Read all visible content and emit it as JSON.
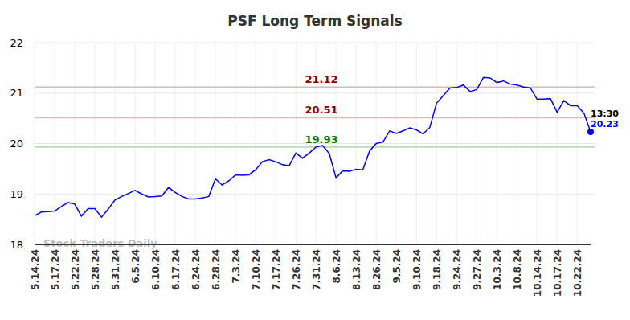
{
  "chart_data": {
    "type": "line",
    "title": "PSF Long Term Signals",
    "categories": [
      "5.14.24",
      null,
      null,
      "5.17.24",
      null,
      null,
      "5.22.24",
      null,
      null,
      "5.28.24",
      null,
      null,
      "5.31.24",
      null,
      null,
      "6.5.24",
      null,
      null,
      "6.10.24",
      null,
      null,
      "6.17.24",
      null,
      null,
      "6.24.24",
      null,
      null,
      "6.28.24",
      null,
      null,
      "7.3.24",
      null,
      null,
      "7.10.24",
      null,
      null,
      "7.17.24",
      null,
      null,
      "7.26.24",
      null,
      null,
      "7.31.24",
      null,
      null,
      "8.6.24",
      null,
      null,
      "8.13.24",
      null,
      null,
      "8.26.24",
      null,
      null,
      "9.5.24",
      null,
      null,
      "9.10.24",
      null,
      null,
      "9.18.24",
      null,
      null,
      "9.24.24",
      null,
      null,
      "9.27.24",
      null,
      null,
      "10.3.24",
      null,
      null,
      "10.8.24",
      null,
      null,
      "10.14.24",
      null,
      null,
      "10.17.24",
      null,
      null,
      "10.22.24",
      null,
      null
    ],
    "values": [
      18.57,
      18.64,
      18.65,
      18.66,
      18.75,
      18.83,
      18.8,
      18.56,
      18.71,
      18.71,
      18.54,
      18.7,
      18.88,
      18.95,
      19.01,
      19.07,
      19.0,
      18.94,
      18.95,
      18.96,
      19.13,
      19.03,
      18.95,
      18.9,
      18.9,
      18.92,
      18.95,
      19.3,
      19.18,
      19.26,
      19.38,
      19.37,
      19.38,
      19.48,
      19.64,
      19.68,
      19.64,
      19.58,
      19.56,
      19.81,
      19.71,
      19.81,
      19.93,
      19.96,
      19.8,
      19.32,
      19.46,
      19.45,
      19.49,
      19.48,
      19.85,
      20.0,
      20.03,
      20.25,
      20.2,
      20.25,
      20.31,
      20.27,
      20.19,
      20.32,
      20.8,
      20.95,
      21.1,
      21.11,
      21.16,
      21.03,
      21.07,
      21.31,
      21.3,
      21.21,
      21.24,
      21.18,
      21.16,
      21.12,
      21.1,
      20.88,
      20.88,
      20.89,
      20.62,
      20.85,
      20.75,
      20.75,
      20.6,
      20.23
    ],
    "color": "#0000ff",
    "ylim": [
      18,
      22
    ],
    "yticks": [
      18,
      19,
      20,
      21,
      22
    ],
    "grid": true,
    "signals": [
      {
        "value": 21.12,
        "color": "#8b0000"
      },
      {
        "value": 20.51,
        "color": "#8b0000"
      },
      {
        "value": 19.93,
        "color": "#008000"
      }
    ],
    "annotation": "13:30",
    "watermark": "Stock Traders Daily"
  }
}
